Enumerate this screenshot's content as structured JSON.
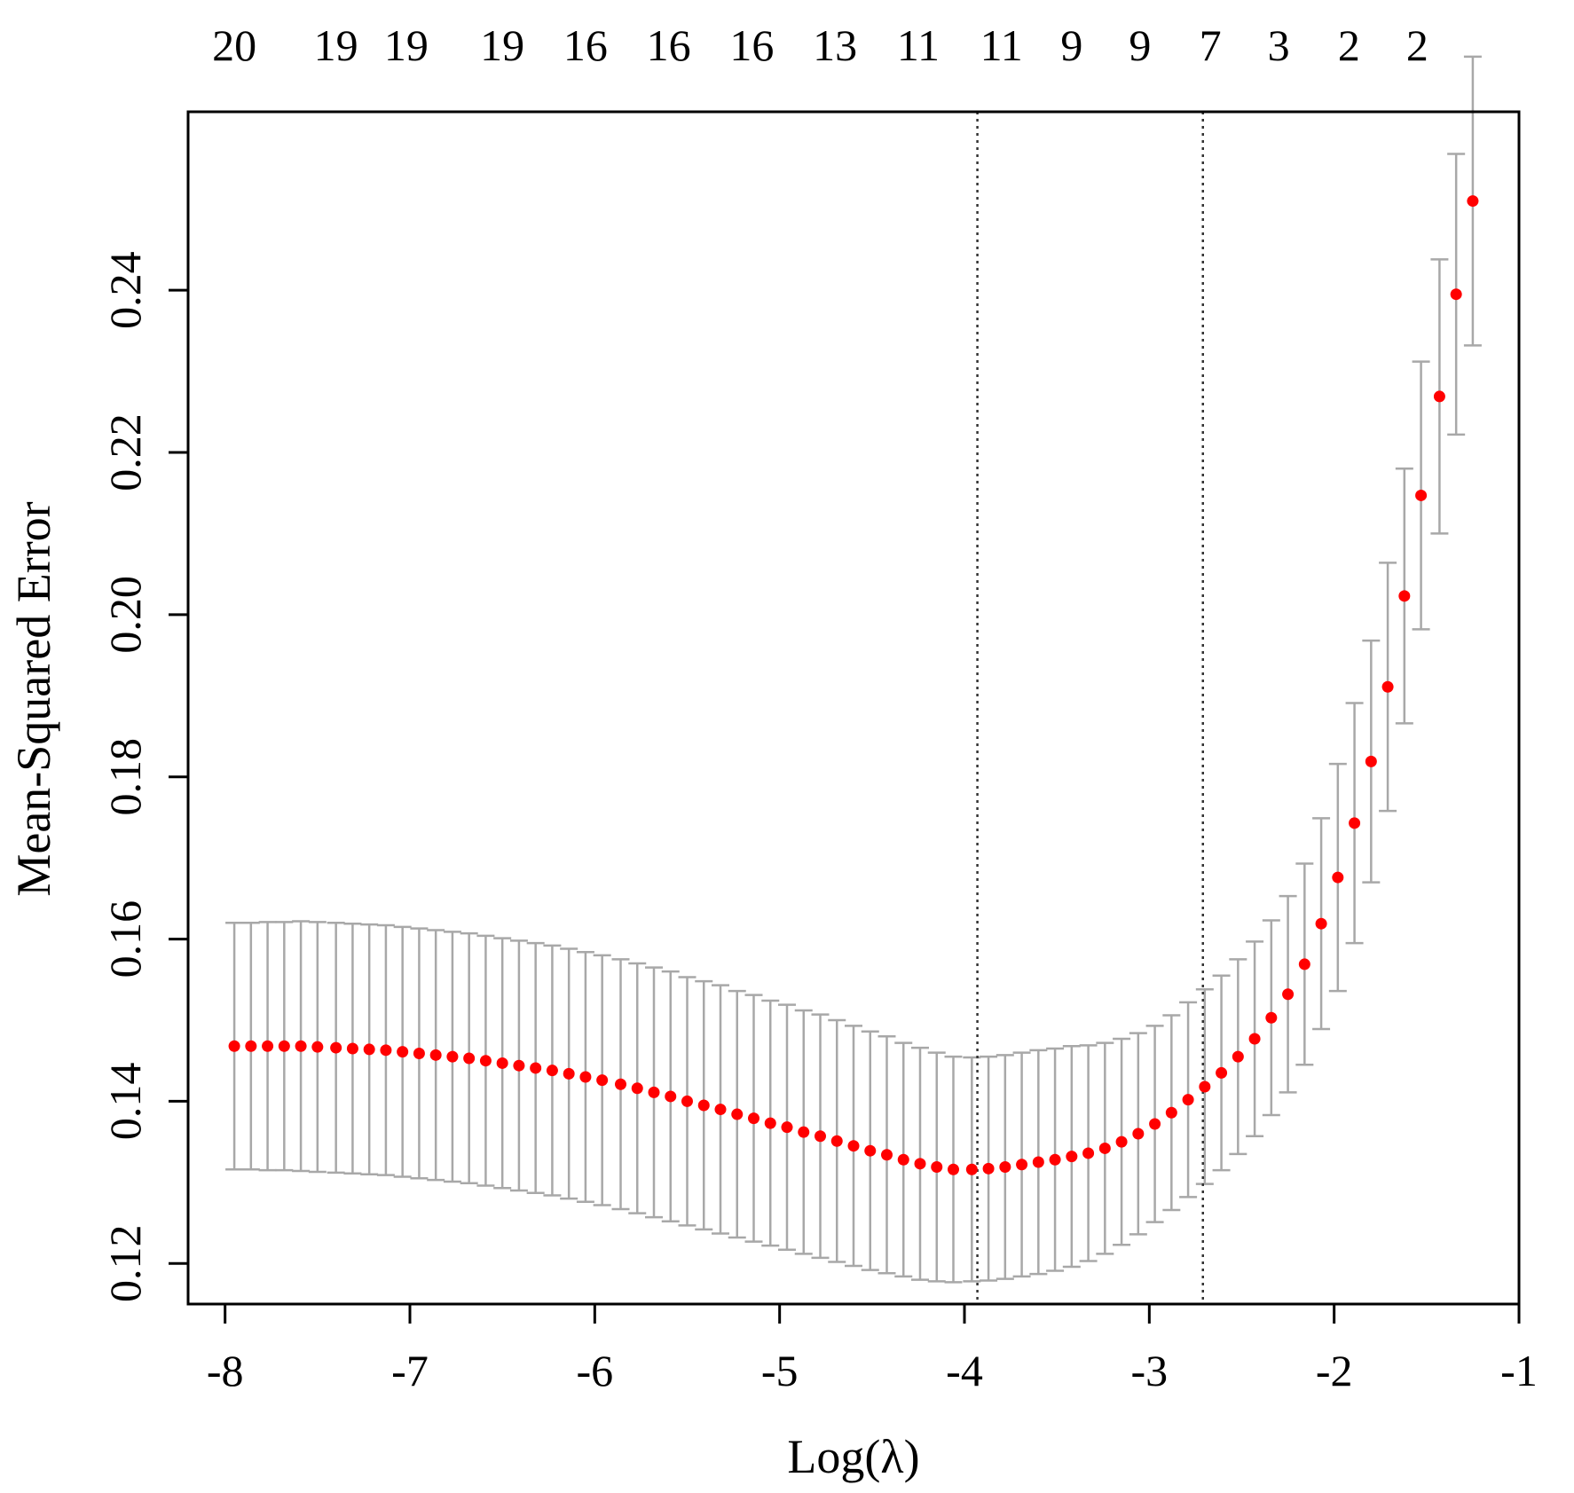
{
  "chart_data": {
    "type": "scatter",
    "title": "",
    "xlabel": "Log(λ)",
    "ylabel": "Mean-Squared Error",
    "xlim": [
      -8.2,
      -1.0
    ],
    "ylim": [
      0.115,
      0.262
    ],
    "x_ticks": [
      -8,
      -7,
      -6,
      -5,
      -4,
      -3,
      -2,
      -1
    ],
    "x_tick_labels": [
      "-8",
      "-7",
      "-6",
      "-5",
      "-4",
      "-3",
      "-2",
      "-1"
    ],
    "y_ticks": [
      0.12,
      0.14,
      0.16,
      0.18,
      0.2,
      0.22,
      0.24
    ],
    "y_tick_labels": [
      "0.12",
      "0.14",
      "0.16",
      "0.18",
      "0.20",
      "0.22",
      "0.24"
    ],
    "grid": false,
    "legend": "none",
    "top_axis": {
      "positions": [
        -7.95,
        -7.4,
        -7.02,
        -6.5,
        -6.05,
        -5.6,
        -5.15,
        -4.7,
        -4.25,
        -3.8,
        -3.42,
        -3.05,
        -2.67,
        -2.3,
        -1.92,
        -1.55
      ],
      "labels": [
        "20",
        "19",
        "19",
        "19",
        "16",
        "16",
        "16",
        "13",
        "11",
        "11",
        "9",
        "9",
        "7",
        "3",
        "2",
        "2"
      ]
    },
    "vlines": [
      -3.93,
      -2.71
    ],
    "point_color": "#ff0000",
    "errorbar_color": "#a8a8a8",
    "series": [
      {
        "x": [
          -7.95,
          -7.86,
          -7.77,
          -7.68,
          -7.59,
          -7.5,
          -7.4,
          -7.31,
          -7.22,
          -7.13,
          -7.04,
          -6.95,
          -6.86,
          -6.77,
          -6.68,
          -6.59,
          -6.5,
          -6.41,
          -6.32,
          -6.23,
          -6.14,
          -6.05,
          -5.96,
          -5.86,
          -5.77,
          -5.68,
          -5.59,
          -5.5,
          -5.41,
          -5.32,
          -5.23,
          -5.14,
          -5.05,
          -4.96,
          -4.87,
          -4.78,
          -4.69,
          -4.6,
          -4.51,
          -4.42,
          -4.33,
          -4.24,
          -4.15,
          -4.06,
          -3.96,
          -3.87,
          -3.78,
          -3.69,
          -3.6,
          -3.51,
          -3.42,
          -3.33,
          -3.24,
          -3.15,
          -3.06,
          -2.97,
          -2.88,
          -2.79,
          -2.7,
          -2.61,
          -2.52,
          -2.43,
          -2.34,
          -2.25,
          -2.16,
          -2.07,
          -1.98,
          -1.89,
          -1.8,
          -1.71,
          -1.62,
          -1.53,
          -1.43,
          -1.34,
          -1.25
        ],
        "y": [
          0.1468,
          0.1468,
          0.1468,
          0.1468,
          0.1468,
          0.1467,
          0.1466,
          0.1465,
          0.1464,
          0.1463,
          0.1461,
          0.1459,
          0.1457,
          0.1455,
          0.1453,
          0.145,
          0.1447,
          0.1444,
          0.1441,
          0.1438,
          0.1434,
          0.143,
          0.1426,
          0.1421,
          0.1416,
          0.1411,
          0.1406,
          0.14,
          0.1395,
          0.139,
          0.1384,
          0.1379,
          0.1373,
          0.1368,
          0.1362,
          0.1357,
          0.1351,
          0.1345,
          0.1339,
          0.1334,
          0.1328,
          0.1323,
          0.1319,
          0.1316,
          0.1316,
          0.1317,
          0.1319,
          0.1322,
          0.1325,
          0.1328,
          0.1332,
          0.1336,
          0.1342,
          0.135,
          0.136,
          0.1372,
          0.1386,
          0.1402,
          0.1418,
          0.1435,
          0.1455,
          0.1477,
          0.1503,
          0.1532,
          0.1569,
          0.1619,
          0.1676,
          0.1743,
          0.1819,
          0.1911,
          0.2023,
          0.2147,
          0.2269,
          0.2395,
          0.251
        ],
        "y_low": [
          0.1316,
          0.1316,
          0.1315,
          0.1315,
          0.1314,
          0.1313,
          0.1312,
          0.1311,
          0.131,
          0.1309,
          0.1307,
          0.1305,
          0.1303,
          0.1301,
          0.1299,
          0.1296,
          0.1293,
          0.129,
          0.1287,
          0.1284,
          0.128,
          0.1276,
          0.1272,
          0.1267,
          0.1262,
          0.1257,
          0.1252,
          0.1247,
          0.1242,
          0.1237,
          0.1232,
          0.1227,
          0.1222,
          0.1217,
          0.1212,
          0.1207,
          0.1202,
          0.1197,
          0.1192,
          0.1188,
          0.1184,
          0.118,
          0.1178,
          0.1177,
          0.1178,
          0.1179,
          0.1181,
          0.1184,
          0.1187,
          0.1191,
          0.1196,
          0.1203,
          0.1212,
          0.1223,
          0.1236,
          0.1251,
          0.1266,
          0.1282,
          0.1298,
          0.1315,
          0.1335,
          0.1357,
          0.1383,
          0.1411,
          0.1445,
          0.1489,
          0.1536,
          0.1595,
          0.167,
          0.1758,
          0.1866,
          0.1982,
          0.21,
          0.2222,
          0.2332
        ],
        "y_high": [
          0.162,
          0.162,
          0.1621,
          0.1621,
          0.1622,
          0.1621,
          0.162,
          0.1619,
          0.1618,
          0.1617,
          0.1615,
          0.1613,
          0.1611,
          0.1609,
          0.1607,
          0.1604,
          0.1601,
          0.1598,
          0.1595,
          0.1592,
          0.1588,
          0.1584,
          0.158,
          0.1575,
          0.157,
          0.1565,
          0.156,
          0.1553,
          0.1548,
          0.1543,
          0.1536,
          0.1531,
          0.1524,
          0.1519,
          0.1512,
          0.1507,
          0.15,
          0.1493,
          0.1486,
          0.148,
          0.1472,
          0.1466,
          0.146,
          0.1455,
          0.1454,
          0.1455,
          0.1457,
          0.146,
          0.1463,
          0.1465,
          0.1468,
          0.1469,
          0.1472,
          0.1477,
          0.1484,
          0.1493,
          0.1506,
          0.1522,
          0.1538,
          0.1555,
          0.1575,
          0.1597,
          0.1623,
          0.1653,
          0.1693,
          0.1749,
          0.1816,
          0.1891,
          0.1968,
          0.2064,
          0.218,
          0.2312,
          0.2438,
          0.2568,
          0.2688
        ]
      }
    ]
  }
}
